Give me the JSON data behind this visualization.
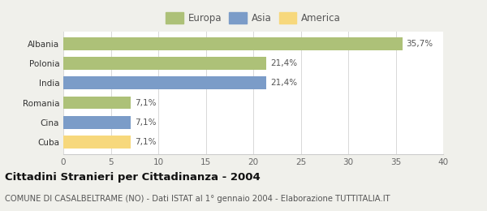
{
  "categories": [
    "Albania",
    "Polonia",
    "India",
    "Romania",
    "Cina",
    "Cuba"
  ],
  "values": [
    35.7,
    21.4,
    21.4,
    7.1,
    7.1,
    7.1
  ],
  "labels": [
    "35,7%",
    "21,4%",
    "21,4%",
    "7,1%",
    "7,1%",
    "7,1%"
  ],
  "colors": [
    "#adc178",
    "#adc178",
    "#7b9cc8",
    "#adc178",
    "#7b9cc8",
    "#f7d87c"
  ],
  "legend_items": [
    {
      "label": "Europa",
      "color": "#adc178"
    },
    {
      "label": "Asia",
      "color": "#7b9cc8"
    },
    {
      "label": "America",
      "color": "#f7d87c"
    }
  ],
  "xlim": [
    0,
    40
  ],
  "xticks": [
    0,
    5,
    10,
    15,
    20,
    25,
    30,
    35,
    40
  ],
  "title": "Cittadini Stranieri per Cittadinanza - 2004",
  "subtitle": "COMUNE DI CASALBELTRAME (NO) - Dati ISTAT al 1° gennaio 2004 - Elaborazione TUTTITALIA.IT",
  "background_color": "#f0f0eb",
  "bar_background": "#ffffff",
  "title_fontsize": 9.5,
  "subtitle_fontsize": 7.2,
  "label_fontsize": 7.5,
  "tick_fontsize": 7.5,
  "legend_fontsize": 8.5
}
